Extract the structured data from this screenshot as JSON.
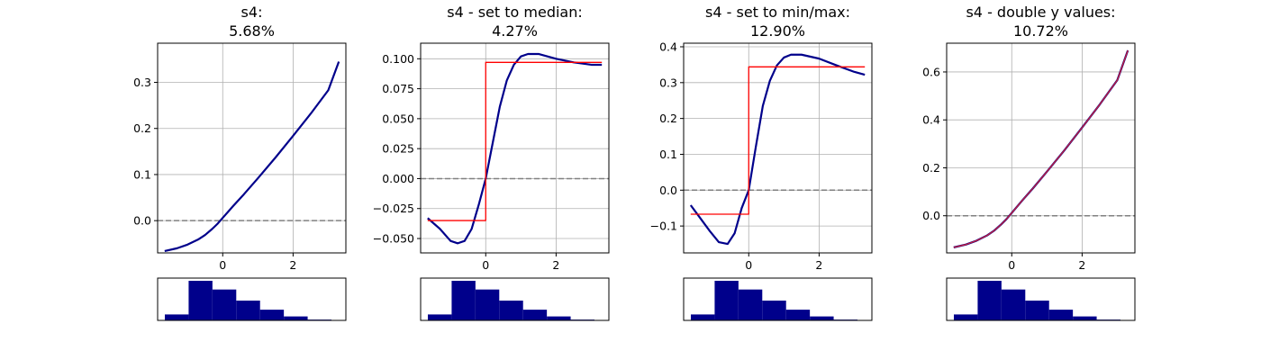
{
  "chart_data": [
    {
      "type": "line",
      "title": "s4:",
      "subtitle": "5.68%",
      "xlim": [
        -1.85,
        3.5
      ],
      "ylim": [
        -0.07,
        0.385
      ],
      "xticks": [
        0,
        2
      ],
      "xtick_labels": [
        "0",
        "2"
      ],
      "yticks": [
        0.0,
        0.1,
        0.2,
        0.3
      ],
      "ytick_labels": [
        "0.0",
        "0.1",
        "0.2",
        "0.3"
      ],
      "grid": true,
      "zero_line": 0,
      "series": [
        {
          "color": "#00008b",
          "x": [
            -1.65,
            -1.3,
            -1.0,
            -0.7,
            -0.5,
            -0.3,
            -0.15,
            0.0,
            0.3,
            0.6,
            1.0,
            1.5,
            2.0,
            2.5,
            3.0,
            3.3
          ],
          "y": [
            -0.066,
            -0.06,
            -0.052,
            -0.041,
            -0.031,
            -0.018,
            -0.007,
            0.006,
            0.032,
            0.057,
            0.092,
            0.137,
            0.184,
            0.232,
            0.283,
            0.345
          ]
        }
      ],
      "histogram": {
        "values": [
          0.15,
          1.0,
          0.78,
          0.5,
          0.27,
          0.1,
          0.02
        ]
      }
    },
    {
      "type": "line",
      "title": "s4 - set to median:",
      "subtitle": "4.27%",
      "xlim": [
        -1.85,
        3.5
      ],
      "ylim": [
        -0.062,
        0.113
      ],
      "xticks": [
        0,
        2
      ],
      "xtick_labels": [
        "0",
        "2"
      ],
      "yticks": [
        -0.05,
        -0.025,
        0.0,
        0.025,
        0.05,
        0.075,
        0.1
      ],
      "ytick_labels": [
        "−0.050",
        "−0.025",
        "0.000",
        "0.025",
        "0.050",
        "0.075",
        "0.100"
      ],
      "grid": true,
      "zero_line": 0,
      "series": [
        {
          "color": "#00008b",
          "x": [
            -1.65,
            -1.3,
            -1.0,
            -0.8,
            -0.6,
            -0.4,
            -0.2,
            0.0,
            0.2,
            0.4,
            0.6,
            0.8,
            1.0,
            1.2,
            1.5,
            2.0,
            2.5,
            3.0,
            3.3
          ],
          "y": [
            -0.033,
            -0.042,
            -0.052,
            -0.054,
            -0.052,
            -0.042,
            -0.022,
            0.0,
            0.03,
            0.06,
            0.082,
            0.095,
            0.102,
            0.104,
            0.104,
            0.1,
            0.097,
            0.095,
            0.095
          ]
        },
        {
          "color": "#ff0000",
          "step": true,
          "x": [
            -1.65,
            0.0,
            0.0,
            3.3
          ],
          "y": [
            -0.035,
            -0.035,
            0.097,
            0.097
          ]
        }
      ],
      "histogram": {
        "values": [
          0.15,
          1.0,
          0.78,
          0.5,
          0.27,
          0.1,
          0.02
        ]
      }
    },
    {
      "type": "line",
      "title": "s4 - set to min/max:",
      "subtitle": "12.90%",
      "xlim": [
        -1.85,
        3.5
      ],
      "ylim": [
        -0.175,
        0.41
      ],
      "xticks": [
        0,
        2
      ],
      "xtick_labels": [
        "0",
        "2"
      ],
      "yticks": [
        -0.1,
        0.0,
        0.1,
        0.2,
        0.3,
        0.4
      ],
      "ytick_labels": [
        "−0.1",
        "0.0",
        "0.1",
        "0.2",
        "0.3",
        "0.4"
      ],
      "grid": true,
      "zero_line": 0,
      "series": [
        {
          "color": "#00008b",
          "x": [
            -1.65,
            -1.4,
            -1.1,
            -0.85,
            -0.6,
            -0.4,
            -0.2,
            0.0,
            0.2,
            0.4,
            0.6,
            0.8,
            1.0,
            1.2,
            1.5,
            2.0,
            2.5,
            3.0,
            3.3
          ],
          "y": [
            -0.042,
            -0.075,
            -0.115,
            -0.145,
            -0.15,
            -0.12,
            -0.05,
            0.0,
            0.12,
            0.235,
            0.305,
            0.348,
            0.37,
            0.378,
            0.378,
            0.367,
            0.348,
            0.33,
            0.322
          ]
        },
        {
          "color": "#ff0000",
          "step": true,
          "x": [
            -1.65,
            0.0,
            0.0,
            3.3
          ],
          "y": [
            -0.067,
            -0.067,
            0.344,
            0.344
          ]
        }
      ],
      "histogram": {
        "values": [
          0.15,
          1.0,
          0.78,
          0.5,
          0.27,
          0.1,
          0.02
        ]
      }
    },
    {
      "type": "line",
      "title": "s4 - double y values:",
      "subtitle": "10.72%",
      "xlim": [
        -1.85,
        3.5
      ],
      "ylim": [
        -0.155,
        0.72
      ],
      "xticks": [
        0,
        2
      ],
      "xtick_labels": [
        "0",
        "2"
      ],
      "yticks": [
        0.0,
        0.2,
        0.4,
        0.6
      ],
      "ytick_labels": [
        "0.0",
        "0.2",
        "0.4",
        "0.6"
      ],
      "grid": true,
      "zero_line": 0,
      "series": [
        {
          "color": "#00008b",
          "x": [
            -1.65,
            -1.3,
            -1.0,
            -0.7,
            -0.5,
            -0.3,
            -0.15,
            0.0,
            0.3,
            0.6,
            1.0,
            1.5,
            2.0,
            2.5,
            3.0,
            3.3
          ],
          "y": [
            -0.132,
            -0.12,
            -0.104,
            -0.082,
            -0.062,
            -0.036,
            -0.014,
            0.012,
            0.064,
            0.114,
            0.184,
            0.274,
            0.368,
            0.464,
            0.566,
            0.69
          ]
        },
        {
          "color": "#c81e3c",
          "x": [
            -1.65,
            -1.3,
            -1.0,
            -0.7,
            -0.5,
            -0.3,
            -0.15,
            0.0,
            0.3,
            0.6,
            1.0,
            1.5,
            2.0,
            2.5,
            3.0,
            3.3
          ],
          "y": [
            -0.132,
            -0.12,
            -0.104,
            -0.082,
            -0.062,
            -0.036,
            -0.014,
            0.012,
            0.064,
            0.114,
            0.184,
            0.274,
            0.368,
            0.464,
            0.566,
            0.69
          ]
        }
      ],
      "histogram": {
        "values": [
          0.15,
          1.0,
          0.78,
          0.5,
          0.27,
          0.1,
          0.02
        ]
      }
    }
  ]
}
